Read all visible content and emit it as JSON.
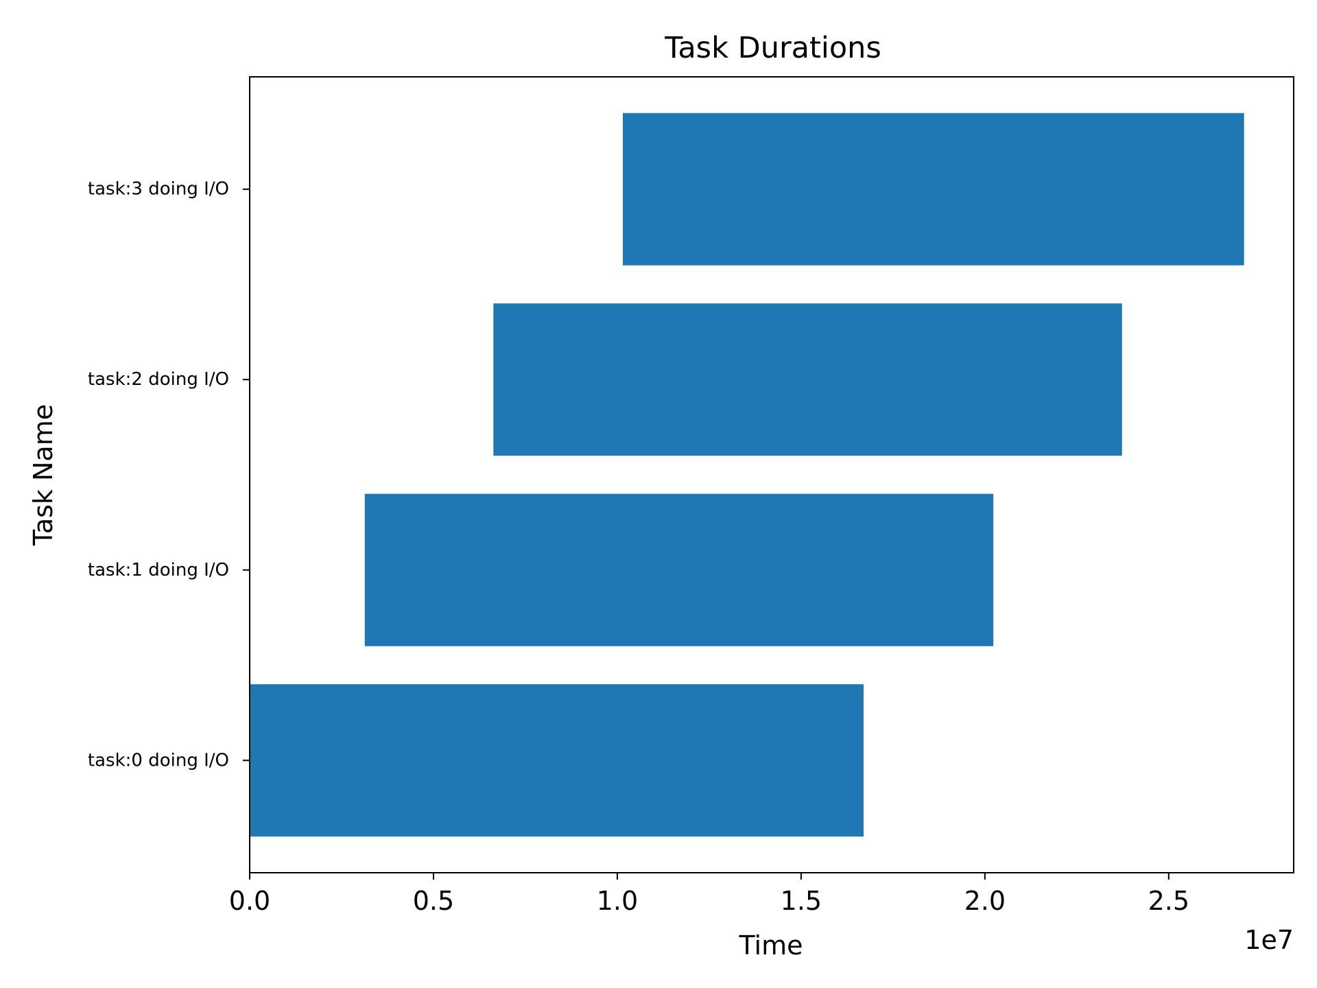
{
  "chart_data": {
    "type": "bar",
    "orientation": "horizontal",
    "title": "Task Durations",
    "xlabel": "Time",
    "ylabel": "Task Name",
    "x_offset_text": "1e7",
    "xlim": [
      0,
      28400000.0
    ],
    "xticks": [
      {
        "value": 0,
        "label": "0.0"
      },
      {
        "value": 5000000,
        "label": "0.5"
      },
      {
        "value": 10000000,
        "label": "1.0"
      },
      {
        "value": 15000000,
        "label": "1.5"
      },
      {
        "value": 20000000,
        "label": "2.0"
      },
      {
        "value": 25000000,
        "label": "2.5"
      }
    ],
    "grid": false,
    "bar_color": "#1f77b4",
    "tasks": [
      {
        "name": "task:0 doing I/O",
        "start": 0,
        "end": 16700000
      },
      {
        "name": "task:1 doing I/O",
        "start": 3130000,
        "end": 20230000
      },
      {
        "name": "task:2 doing I/O",
        "start": 6630000,
        "end": 23730000
      },
      {
        "name": "task:3 doing I/O",
        "start": 10150000,
        "end": 27050000
      }
    ]
  }
}
